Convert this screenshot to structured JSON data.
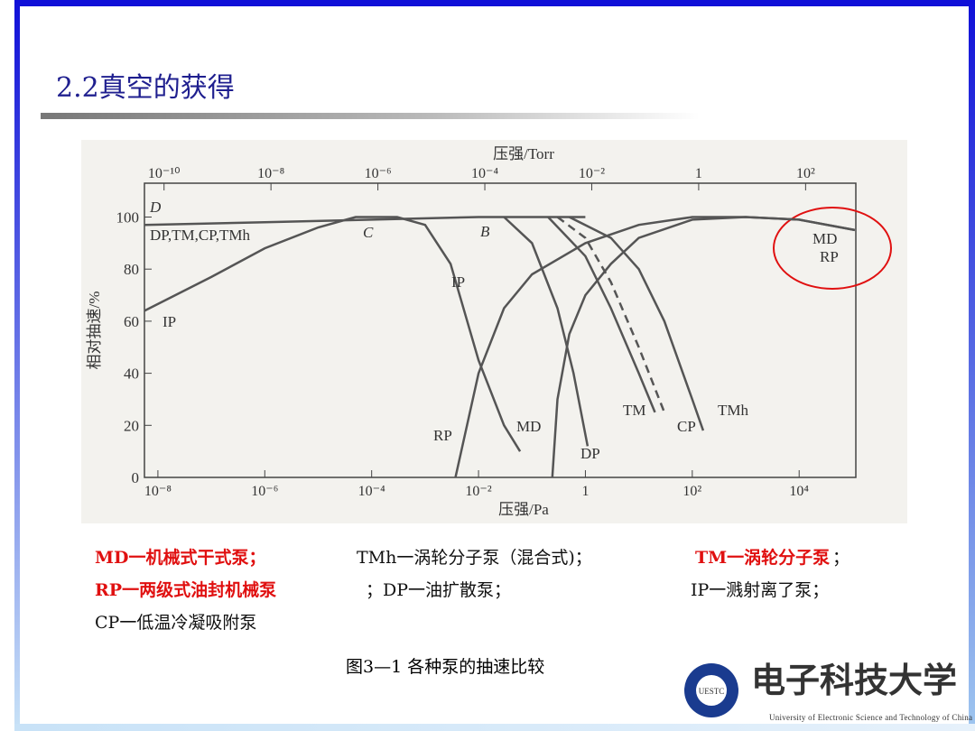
{
  "slide": {
    "title": "2.2真空的获得",
    "notes": [
      [
        {
          "text": "MD一机械式干式泵；",
          "color": "#e01010"
        },
        {
          "text": "TMh一涡轮分子泵（混合式)；",
          "color": "#111111"
        },
        {
          "text": "TM一涡轮分子泵",
          "color": "#e01010"
        },
        {
          "text": "；",
          "color": "#111111"
        }
      ],
      [
        {
          "text": "RP一两级式油封机械泵",
          "color": "#e01010"
        },
        {
          "text": "；DP一油扩散泵；",
          "color": "#111111"
        },
        {
          "text": "IP一溅射离了泵；",
          "color": "#111111"
        }
      ],
      [
        {
          "text": "CP一低温冷凝吸附泵",
          "color": "#111111"
        }
      ]
    ],
    "caption": "图3—1 各种泵的抽速比较",
    "logo": {
      "name": "电子科技大学",
      "english": "University of Electronic Science and Technology of China",
      "seal": "UESTC"
    }
  },
  "chart_data": {
    "type": "line",
    "title": "压强/Torr",
    "x_label": "压强/Pa",
    "y_label": "相对抽速/%",
    "log_x": true,
    "xlim": [
      5.6e-09,
      115000.0
    ],
    "ylim": [
      0,
      113
    ],
    "xticks": [
      {
        "value": 1e-08,
        "label": "10⁻⁸"
      },
      {
        "value": 1e-06,
        "label": "10⁻⁶"
      },
      {
        "value": 0.0001,
        "label": "10⁻⁴"
      },
      {
        "value": 0.01,
        "label": "10⁻²"
      },
      1,
      {
        "value": 100,
        "label": "10²"
      },
      {
        "value": 10000,
        "label": "10⁴"
      }
    ],
    "x2lim": [
      4.3e-11,
      870
    ],
    "x2ticks": [
      {
        "value": 1e-10,
        "label": "10⁻¹⁰"
      },
      {
        "value": 1e-08,
        "label": "10⁻⁸"
      },
      {
        "value": 1e-06,
        "label": "10⁻⁶"
      },
      {
        "value": 0.0001,
        "label": "10⁻⁴"
      },
      {
        "value": 0.01,
        "label": "10⁻²"
      },
      1,
      {
        "value": 100,
        "label": "10²"
      }
    ],
    "yticks": [
      0,
      20,
      40,
      60,
      80,
      100
    ],
    "annotations": [
      "D",
      "C",
      "B",
      "IP",
      "MD RP"
    ],
    "series": [
      {
        "name": "DP,TM,CP,TMh",
        "color": "#555555",
        "x": [
          5.6e-09,
          1e-06,
          0.0001,
          0.01,
          1
        ],
        "values": [
          97,
          98,
          99,
          100,
          100
        ]
      },
      {
        "name": "IP",
        "color": "#555555",
        "x": [
          5.6e-09,
          1e-07,
          1e-06,
          1e-05,
          5e-05,
          0.0003,
          0.001,
          0.003,
          0.01,
          0.03,
          0.06
        ],
        "values": [
          64,
          77,
          88,
          96,
          100,
          100,
          97,
          82,
          45,
          20,
          10
        ]
      },
      {
        "name": "RP",
        "color": "#555555",
        "x": [
          0.0037,
          0.01,
          0.03,
          0.1,
          1,
          10,
          100,
          1000,
          10000,
          110000.0
        ],
        "values": [
          0,
          40,
          65,
          78,
          90,
          97,
          100,
          100,
          99,
          95
        ]
      },
      {
        "name": "MD",
        "color": "#555555",
        "x": [
          0.24,
          0.3,
          0.5,
          1,
          3,
          10,
          100,
          1000,
          10000,
          110000.0
        ],
        "values": [
          0,
          30,
          55,
          70,
          82,
          92,
          99,
          100,
          99,
          95
        ]
      },
      {
        "name": "DP",
        "color": "#555555",
        "x": [
          0.03,
          0.1,
          0.3,
          0.6,
          1.1
        ],
        "values": [
          100,
          90,
          65,
          40,
          12
        ]
      },
      {
        "name": "TM",
        "color": "#555555",
        "x": [
          0.2,
          1,
          3,
          10,
          20
        ],
        "values": [
          100,
          85,
          65,
          40,
          25
        ]
      },
      {
        "name": "CP",
        "color": "#555555",
        "dashed": true,
        "x": [
          0.3,
          1,
          3,
          10,
          30
        ],
        "values": [
          100,
          92,
          75,
          50,
          25
        ]
      },
      {
        "name": "TMh",
        "color": "#555555",
        "x": [
          0.5,
          3,
          10,
          30,
          100,
          160
        ],
        "values": [
          100,
          92,
          80,
          60,
          30,
          18
        ]
      }
    ]
  }
}
